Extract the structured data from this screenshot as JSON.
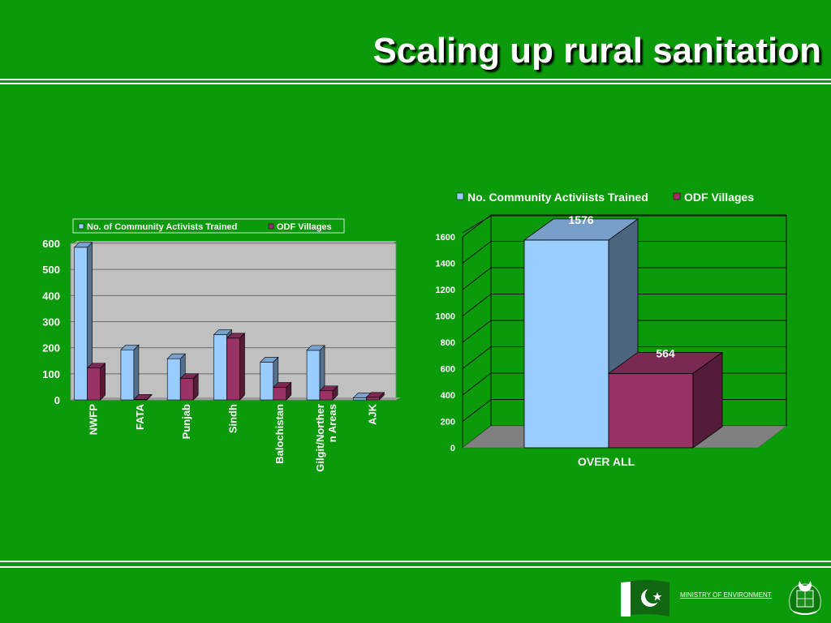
{
  "slide": {
    "title": "Scaling up rural sanitation",
    "footer": "MINISTRY OF ENVIRONMENT"
  },
  "colors": {
    "background": "#0a9a0a",
    "series_trained": "#99ccff",
    "series_odf": "#993366"
  },
  "icons": [
    "pakistan-flag-icon",
    "government-emblem-icon"
  ],
  "chart_data": [
    {
      "type": "bar",
      "legend": [
        "No. of Community Activists Trained",
        "ODF Villages"
      ],
      "categories": [
        "NWFP",
        "FATA",
        "Punjab",
        "Sindh",
        "Balochistan",
        "Gilgit/Northern Areas",
        "AJK"
      ],
      "category_lines": [
        [
          "NWFP"
        ],
        [
          "FATA"
        ],
        [
          "Punjab"
        ],
        [
          "Sindh"
        ],
        [
          "Balochistan"
        ],
        [
          "Gilgit/Norther",
          "n Areas"
        ],
        [
          "AJK"
        ]
      ],
      "series": [
        {
          "name": "No. of Community Activists Trained",
          "values": [
            585,
            192,
            158,
            250,
            145,
            190,
            8
          ]
        },
        {
          "name": "ODF Villages",
          "values": [
            122,
            2,
            82,
            237,
            48,
            35,
            10
          ]
        }
      ],
      "yticks": [
        "0",
        "100",
        "200",
        "300",
        "400",
        "500",
        "600"
      ],
      "ylim": [
        0,
        600
      ],
      "grid": true,
      "legend_position": "top"
    },
    {
      "type": "bar",
      "legend": [
        "No. Community Activiists Trained",
        "ODF Villages"
      ],
      "categories": [
        "OVER ALL"
      ],
      "series": [
        {
          "name": "No. Community Activiists Trained",
          "values": [
            1576
          ],
          "label": "1576"
        },
        {
          "name": "ODF Villages",
          "values": [
            564
          ],
          "label": "564"
        }
      ],
      "yticks": [
        "0",
        "200",
        "400",
        "600",
        "800",
        "1000",
        "1200",
        "1400",
        "1600"
      ],
      "ylim": [
        0,
        1600
      ],
      "grid": true,
      "legend_position": "top"
    }
  ]
}
